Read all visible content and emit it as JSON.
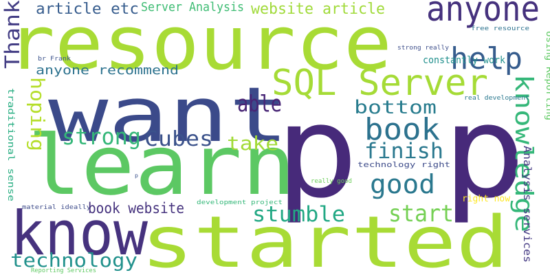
{
  "words": [
    {
      "text": "resource",
      "color": "#a8db35",
      "icon": "word-text"
    },
    {
      "text": "want",
      "color": "#3b4a8a"
    },
    {
      "text": "p p",
      "color": "#472a7a"
    },
    {
      "text": "learn",
      "color": "#5cc863"
    },
    {
      "text": "know",
      "color": "#46327e"
    },
    {
      "text": "started",
      "color": "#a8db35"
    },
    {
      "text": "anyone",
      "color": "#45317d"
    },
    {
      "text": "help",
      "color": "#365c8d"
    },
    {
      "text": "SQL Server",
      "color": "#a5db36"
    },
    {
      "text": "Thank",
      "color": "#433d84"
    },
    {
      "text": "article etc",
      "color": "#365c8d"
    },
    {
      "text": "Server Analysis",
      "color": "#3ebc73"
    },
    {
      "text": "website article",
      "color": "#a0da39"
    },
    {
      "text": "free resource",
      "color": "#2c728e"
    },
    {
      "text": "br Frank",
      "color": "#3b528b"
    },
    {
      "text": "anyone recommend",
      "color": "#2c728e"
    },
    {
      "text": "strong really",
      "color": "#3d4e8a"
    },
    {
      "text": "constantly work",
      "color": "#21908d"
    },
    {
      "text": "Using Reporting",
      "color": "#5ec962"
    },
    {
      "text": "hoping",
      "color": "#b5de2b"
    },
    {
      "text": "able",
      "color": "#482575"
    },
    {
      "text": "bottom",
      "color": "#287c8e"
    },
    {
      "text": "knowledge",
      "color": "#35b779"
    },
    {
      "text": "real development",
      "color": "#2a788e"
    },
    {
      "text": "traditional sense",
      "color": "#26ad81"
    },
    {
      "text": "Analysis services",
      "color": "#443983"
    },
    {
      "text": "strong",
      "color": "#35b779"
    },
    {
      "text": "Cubes",
      "color": "#3b528b"
    },
    {
      "text": "book",
      "color": "#2c728e"
    },
    {
      "text": "take",
      "color": "#a2da37"
    },
    {
      "text": "finish",
      "color": "#2a788e"
    },
    {
      "text": "technology right",
      "color": "#3e4c8a"
    },
    {
      "text": "good",
      "color": "#2a788e"
    },
    {
      "text": "really good",
      "color": "#6ccd5a"
    },
    {
      "text": "p",
      "color": "#3b528b"
    },
    {
      "text": "right now",
      "color": "#fde725"
    },
    {
      "text": "material ideally",
      "color": "#3e4c8a"
    },
    {
      "text": "development project",
      "color": "#35b779"
    },
    {
      "text": "book website",
      "color": "#46337e"
    },
    {
      "text": "stumble",
      "color": "#22a884"
    },
    {
      "text": "start",
      "color": "#75d054"
    },
    {
      "text": "technology",
      "color": "#21918c"
    },
    {
      "text": "Reporting Services",
      "color": "#5ec962"
    }
  ]
}
